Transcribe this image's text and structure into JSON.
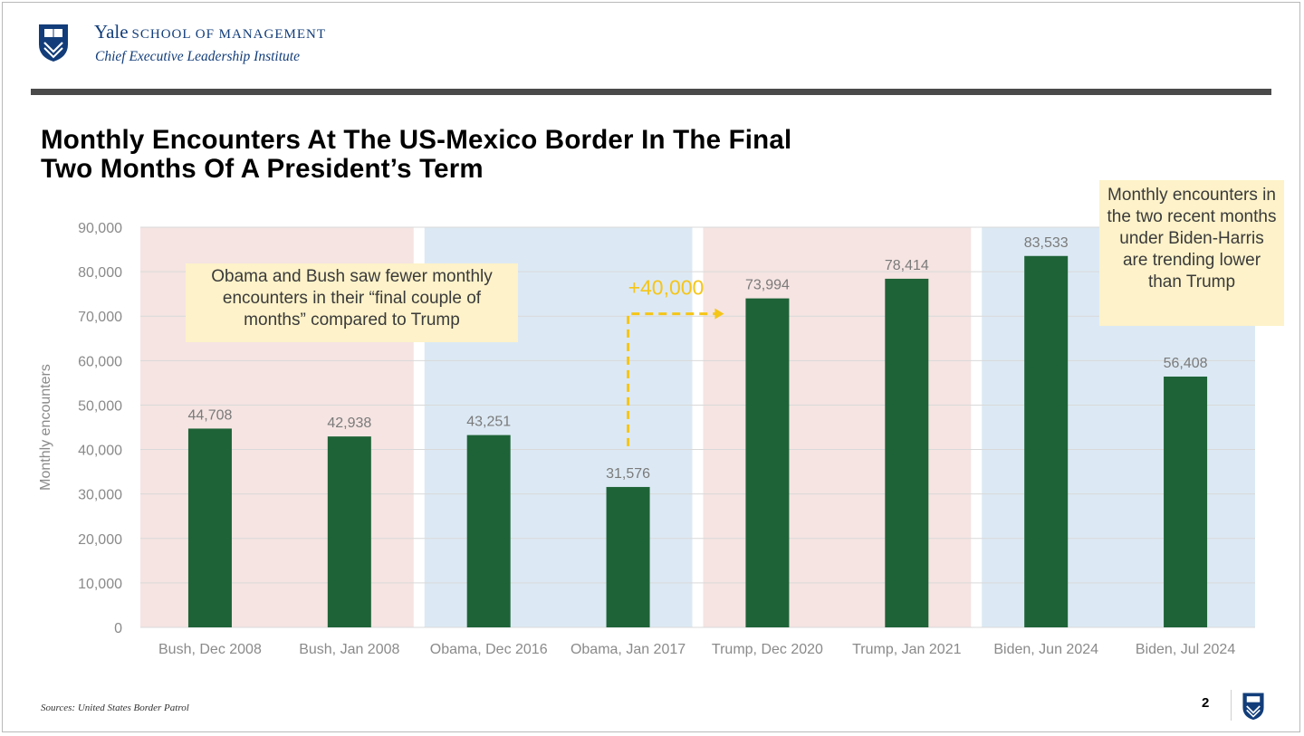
{
  "header": {
    "brand_name": "Yale",
    "brand_school": "SCHOOL OF MANAGEMENT",
    "brand_sub": "Chief Executive Leadership Institute"
  },
  "title_lines": [
    "Monthly Encounters At The US-Mexico Border In The Final",
    "Two Months Of A President’s Term"
  ],
  "notes": {
    "left": "Obama and Bush saw fewer monthly encounters in their “final couple of months” compared to Trump",
    "right": "Monthly encounters in the two recent months under Biden-Harris are trending lower than Trump"
  },
  "footer": {
    "sources": "Sources: United States Border Patrol",
    "page": "2"
  },
  "colors": {
    "bar": "#1e6337",
    "band_red": "#f5e4e2",
    "band_blue": "#dce9f4",
    "arrow": "#f5c518",
    "brand": "#123d7a"
  },
  "chart_data": {
    "type": "bar",
    "title": "Monthly Encounters At The US-Mexico Border In The Final Two Months Of A President’s Term",
    "xlabel": "",
    "ylabel": "Monthly encounters",
    "ylim": [
      0,
      90000
    ],
    "yticks": [
      0,
      10000,
      20000,
      30000,
      40000,
      50000,
      60000,
      70000,
      80000,
      90000
    ],
    "ytick_labels": [
      "0",
      "10,000",
      "20,000",
      "30,000",
      "40,000",
      "50,000",
      "60,000",
      "70,000",
      "80,000",
      "90,000"
    ],
    "categories": [
      "Bush, Dec 2008",
      "Bush, Jan 2008",
      "Obama, Dec 2016",
      "Obama, Jan 2017",
      "Trump, Dec 2020",
      "Trump, Jan 2021",
      "Biden, Jun 2024",
      "Biden, Jul 2024"
    ],
    "values": [
      44708,
      42938,
      43251,
      31576,
      73994,
      78414,
      83533,
      56408
    ],
    "value_labels": [
      "44,708",
      "42,938",
      "43,251",
      "31,576",
      "73,994",
      "78,414",
      "83,533",
      "56,408"
    ],
    "bands": [
      {
        "president": "Bush",
        "color": "red"
      },
      {
        "president": "Obama",
        "color": "blue"
      },
      {
        "president": "Trump",
        "color": "red"
      },
      {
        "president": "Biden",
        "color": "blue"
      }
    ],
    "annotation": {
      "text": "+40,000",
      "from_category": "Obama, Jan 2017",
      "to_category": "Trump, Dec 2020"
    }
  }
}
